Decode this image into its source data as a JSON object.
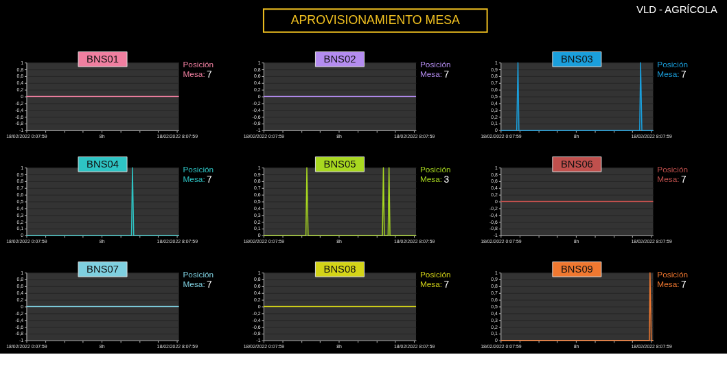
{
  "chart_data": [
    {
      "type": "other",
      "title": "APROVISIONAMIENTO MESA",
      "annotations": [
        "VLD - AGRÍCOLA"
      ]
    },
    {
      "type": "line",
      "title": "BNS01",
      "annotations": [
        "Posición Mesa:",
        "7"
      ],
      "grid": "y",
      "x": [
        "2022-02-18T00:07:59",
        "2022-02-18T08:14"
      ],
      "xlim": [
        "2022-02-18T00:07:59",
        "2022-02-18T08:14"
      ],
      "xticks": [
        {
          "value": "2022-02-18T00:07:59",
          "label": "18/02/2022 0:07:59"
        },
        {
          "value": "2022-02-18T01:07:59",
          "label": null
        },
        {
          "value": "2022-02-18T02:07:59",
          "label": null
        },
        {
          "value": "2022-02-18T03:07:59",
          "label": null
        },
        {
          "value": "2022-02-18T04:07:59",
          "label": "8h"
        },
        {
          "value": "2022-02-18T05:07:59",
          "label": null
        },
        {
          "value": "2022-02-18T06:07:59",
          "label": null
        },
        {
          "value": "2022-02-18T07:07:59",
          "label": null
        },
        {
          "value": "2022-02-18T08:07:59",
          "label": "18/02/2022 8:07:59"
        }
      ],
      "ylim": [
        -1,
        1
      ],
      "yticks": [
        -1,
        {
          "value": -0.8,
          "label": "-0,8"
        },
        {
          "value": -0.6,
          "label": "-0,6"
        },
        {
          "value": -0.4,
          "label": "-0,4"
        },
        {
          "value": -0.2,
          "label": "-0,2"
        },
        0,
        {
          "value": 0.2,
          "label": "0,2"
        },
        {
          "value": 0.4,
          "label": "0,4"
        },
        {
          "value": 0.6,
          "label": "0,6"
        },
        {
          "value": 0.8,
          "label": "0,8"
        },
        1
      ],
      "series": [
        {
          "color": "#f07fa0",
          "values": [
            0,
            0
          ]
        }
      ]
    },
    {
      "type": "line",
      "title": "BNS02",
      "annotations": [
        "Posición Mesa:",
        "7"
      ],
      "grid": "y",
      "x": [
        "2022-02-18T00:07:59",
        "2022-02-18T08:14"
      ],
      "xlim": [
        "2022-02-18T00:07:59",
        "2022-02-18T08:14"
      ],
      "xticks": [
        {
          "value": "2022-02-18T00:07:59",
          "label": "18/02/2022 0:07:59"
        },
        {
          "value": "2022-02-18T01:07:59",
          "label": null
        },
        {
          "value": "2022-02-18T02:07:59",
          "label": null
        },
        {
          "value": "2022-02-18T03:07:59",
          "label": null
        },
        {
          "value": "2022-02-18T04:07:59",
          "label": "8h"
        },
        {
          "value": "2022-02-18T05:07:59",
          "label": null
        },
        {
          "value": "2022-02-18T06:07:59",
          "label": null
        },
        {
          "value": "2022-02-18T07:07:59",
          "label": null
        },
        {
          "value": "2022-02-18T08:07:59",
          "label": "18/02/2022 8:07:59"
        }
      ],
      "ylim": [
        -1,
        1
      ],
      "yticks": [
        -1,
        {
          "value": -0.8,
          "label": "-0,8"
        },
        {
          "value": -0.6,
          "label": "-0,6"
        },
        {
          "value": -0.4,
          "label": "-0,4"
        },
        {
          "value": -0.2,
          "label": "-0,2"
        },
        0,
        {
          "value": 0.2,
          "label": "0,2"
        },
        {
          "value": 0.4,
          "label": "0,4"
        },
        {
          "value": 0.6,
          "label": "0,6"
        },
        {
          "value": 0.8,
          "label": "0,8"
        },
        1
      ],
      "series": [
        {
          "color": "#b48cf0",
          "values": [
            0,
            0
          ]
        }
      ]
    },
    {
      "type": "line",
      "title": "BNS03",
      "annotations": [
        "Posición Mesa:",
        "7"
      ],
      "grid": "y",
      "x": [
        "2022-02-18T00:07:59",
        "2022-02-18T00:59",
        "2022-02-18T01:03",
        "2022-02-18T01:06",
        "2022-02-18T07:31",
        "2022-02-18T07:34",
        "2022-02-18T07:38",
        "2022-02-18T08:14"
      ],
      "xlim": [
        "2022-02-18T00:07:59",
        "2022-02-18T08:14"
      ],
      "xticks": [
        {
          "value": "2022-02-18T00:07:59",
          "label": "18/02/2022 0:07:59"
        },
        {
          "value": "2022-02-18T01:07:59",
          "label": null
        },
        {
          "value": "2022-02-18T02:07:59",
          "label": null
        },
        {
          "value": "2022-02-18T03:07:59",
          "label": null
        },
        {
          "value": "2022-02-18T04:07:59",
          "label": "8h"
        },
        {
          "value": "2022-02-18T05:07:59",
          "label": null
        },
        {
          "value": "2022-02-18T06:07:59",
          "label": null
        },
        {
          "value": "2022-02-18T07:07:59",
          "label": null
        },
        {
          "value": "2022-02-18T08:07:59",
          "label": "18/02/2022 8:07:59"
        }
      ],
      "ylim": [
        0,
        1
      ],
      "yticks": [
        0,
        {
          "value": 0.1,
          "label": "0,1"
        },
        {
          "value": 0.2,
          "label": "0,2"
        },
        {
          "value": 0.3,
          "label": "0,3"
        },
        {
          "value": 0.4,
          "label": "0,4"
        },
        {
          "value": 0.5,
          "label": "0,5"
        },
        {
          "value": 0.6,
          "label": "0,6"
        },
        {
          "value": 0.7,
          "label": "0,7"
        },
        {
          "value": 0.8,
          "label": "0,8"
        },
        {
          "value": 0.9,
          "label": "0,9"
        },
        1
      ],
      "series": [
        {
          "color": "#1a9fdc",
          "values": [
            0,
            0,
            1,
            0,
            0,
            1,
            0,
            0
          ]
        }
      ]
    },
    {
      "type": "line",
      "title": "BNS04",
      "annotations": [
        "Posición Mesa:",
        "7"
      ],
      "grid": "y",
      "x": [
        "2022-02-18T00:07:59",
        "2022-02-18T05:43",
        "2022-02-18T05:46",
        "2022-02-18T05:50",
        "2022-02-18T08:14"
      ],
      "xlim": [
        "2022-02-18T00:07:59",
        "2022-02-18T08:14"
      ],
      "xticks": [
        {
          "value": "2022-02-18T00:07:59",
          "label": "18/02/2022 0:07:59"
        },
        {
          "value": "2022-02-18T01:07:59",
          "label": null
        },
        {
          "value": "2022-02-18T02:07:59",
          "label": null
        },
        {
          "value": "2022-02-18T03:07:59",
          "label": null
        },
        {
          "value": "2022-02-18T04:07:59",
          "label": "8h"
        },
        {
          "value": "2022-02-18T05:07:59",
          "label": null
        },
        {
          "value": "2022-02-18T06:07:59",
          "label": null
        },
        {
          "value": "2022-02-18T07:07:59",
          "label": null
        },
        {
          "value": "2022-02-18T08:07:59",
          "label": "18/02/2022 8:07:59"
        }
      ],
      "ylim": [
        0,
        1
      ],
      "yticks": [
        0,
        {
          "value": 0.1,
          "label": "0,1"
        },
        {
          "value": 0.2,
          "label": "0,2"
        },
        {
          "value": 0.3,
          "label": "0,3"
        },
        {
          "value": 0.4,
          "label": "0,4"
        },
        {
          "value": 0.5,
          "label": "0,5"
        },
        {
          "value": 0.6,
          "label": "0,6"
        },
        {
          "value": 0.7,
          "label": "0,7"
        },
        {
          "value": 0.8,
          "label": "0,8"
        },
        {
          "value": 0.9,
          "label": "0,9"
        },
        1
      ],
      "series": [
        {
          "color": "#2ec4c4",
          "values": [
            0,
            0,
            1,
            0,
            0
          ]
        }
      ]
    },
    {
      "type": "line",
      "title": "BNS05",
      "annotations": [
        "Posición Mesa:",
        "3"
      ],
      "grid": "y",
      "x": [
        "2022-02-18T00:07:59",
        "2022-02-18T02:23",
        "2022-02-18T02:26",
        "2022-02-18T02:30",
        "2022-02-18T06:27",
        "2022-02-18T06:30",
        "2022-02-18T06:33",
        "2022-02-18T06:45",
        "2022-02-18T06:48",
        "2022-02-18T06:51",
        "2022-02-18T08:14"
      ],
      "xlim": [
        "2022-02-18T00:07:59",
        "2022-02-18T08:14"
      ],
      "xticks": [
        {
          "value": "2022-02-18T00:07:59",
          "label": "18/02/2022 0:07:59"
        },
        {
          "value": "2022-02-18T01:07:59",
          "label": null
        },
        {
          "value": "2022-02-18T02:07:59",
          "label": null
        },
        {
          "value": "2022-02-18T03:07:59",
          "label": null
        },
        {
          "value": "2022-02-18T04:07:59",
          "label": "8h"
        },
        {
          "value": "2022-02-18T05:07:59",
          "label": null
        },
        {
          "value": "2022-02-18T06:07:59",
          "label": null
        },
        {
          "value": "2022-02-18T07:07:59",
          "label": null
        },
        {
          "value": "2022-02-18T08:07:59",
          "label": "18/02/2022 8:07:59"
        }
      ],
      "ylim": [
        0,
        1
      ],
      "yticks": [
        0,
        {
          "value": 0.1,
          "label": "0,1"
        },
        {
          "value": 0.2,
          "label": "0,2"
        },
        {
          "value": 0.3,
          "label": "0,3"
        },
        {
          "value": 0.4,
          "label": "0,4"
        },
        {
          "value": 0.5,
          "label": "0,5"
        },
        {
          "value": 0.6,
          "label": "0,6"
        },
        {
          "value": 0.7,
          "label": "0,7"
        },
        {
          "value": 0.8,
          "label": "0,8"
        },
        {
          "value": 0.9,
          "label": "0,9"
        },
        1
      ],
      "series": [
        {
          "color": "#a8d820",
          "values": [
            0,
            0,
            1,
            0,
            0,
            1,
            0,
            0,
            1,
            0,
            0
          ]
        }
      ]
    },
    {
      "type": "line",
      "title": "BNS06",
      "annotations": [
        "Posición Mesa:",
        "7"
      ],
      "grid": "y",
      "x": [
        "2022-02-18T00:07:59",
        "2022-02-18T08:14"
      ],
      "xlim": [
        "2022-02-18T00:07:59",
        "2022-02-18T08:14"
      ],
      "xticks": [
        {
          "value": "2022-02-18T00:07:59",
          "label": "18/02/2022 0:07:59"
        },
        {
          "value": "2022-02-18T01:07:59",
          "label": null
        },
        {
          "value": "2022-02-18T02:07:59",
          "label": null
        },
        {
          "value": "2022-02-18T03:07:59",
          "label": null
        },
        {
          "value": "2022-02-18T04:07:59",
          "label": "8h"
        },
        {
          "value": "2022-02-18T05:07:59",
          "label": null
        },
        {
          "value": "2022-02-18T06:07:59",
          "label": null
        },
        {
          "value": "2022-02-18T07:07:59",
          "label": null
        },
        {
          "value": "2022-02-18T08:07:59",
          "label": "18/02/2022 8:07:59"
        }
      ],
      "ylim": [
        -1,
        1
      ],
      "yticks": [
        -1,
        {
          "value": -0.8,
          "label": "-0,8"
        },
        {
          "value": -0.6,
          "label": "-0,6"
        },
        {
          "value": -0.4,
          "label": "-0,4"
        },
        {
          "value": -0.2,
          "label": "-0,2"
        },
        0,
        {
          "value": 0.2,
          "label": "0,2"
        },
        {
          "value": 0.4,
          "label": "0,4"
        },
        {
          "value": 0.6,
          "label": "0,6"
        },
        {
          "value": 0.8,
          "label": "0,8"
        },
        1
      ],
      "series": [
        {
          "color": "#c0504d",
          "values": [
            0,
            0
          ]
        }
      ]
    },
    {
      "type": "line",
      "title": "BNS07",
      "annotations": [
        "Posición Mesa:",
        "7"
      ],
      "grid": "y",
      "x": [
        "2022-02-18T00:07:59",
        "2022-02-18T08:14"
      ],
      "xlim": [
        "2022-02-18T00:07:59",
        "2022-02-18T08:14"
      ],
      "xticks": [
        {
          "value": "2022-02-18T00:07:59",
          "label": "18/02/2022 0:07:59"
        },
        {
          "value": "2022-02-18T01:07:59",
          "label": null
        },
        {
          "value": "2022-02-18T02:07:59",
          "label": null
        },
        {
          "value": "2022-02-18T03:07:59",
          "label": null
        },
        {
          "value": "2022-02-18T04:07:59",
          "label": "8h"
        },
        {
          "value": "2022-02-18T05:07:59",
          "label": null
        },
        {
          "value": "2022-02-18T06:07:59",
          "label": null
        },
        {
          "value": "2022-02-18T07:07:59",
          "label": null
        },
        {
          "value": "2022-02-18T08:07:59",
          "label": "18/02/2022 8:07:59"
        }
      ],
      "ylim": [
        -1,
        1
      ],
      "yticks": [
        -1,
        {
          "value": -0.8,
          "label": "-0,8"
        },
        {
          "value": -0.6,
          "label": "-0,6"
        },
        {
          "value": -0.4,
          "label": "-0,4"
        },
        {
          "value": -0.2,
          "label": "-0,2"
        },
        0,
        {
          "value": 0.2,
          "label": "0,2"
        },
        {
          "value": 0.4,
          "label": "0,4"
        },
        {
          "value": 0.6,
          "label": "0,6"
        },
        {
          "value": 0.8,
          "label": "0,8"
        },
        1
      ],
      "series": [
        {
          "color": "#7fd0e0",
          "values": [
            0,
            0
          ]
        }
      ]
    },
    {
      "type": "line",
      "title": "BNS08",
      "annotations": [
        "Posición Mesa:",
        "7"
      ],
      "grid": "y",
      "x": [
        "2022-02-18T00:07:59",
        "2022-02-18T08:14"
      ],
      "xlim": [
        "2022-02-18T00:07:59",
        "2022-02-18T08:14"
      ],
      "xticks": [
        {
          "value": "2022-02-18T00:07:59",
          "label": "18/02/2022 0:07:59"
        },
        {
          "value": "2022-02-18T01:07:59",
          "label": null
        },
        {
          "value": "2022-02-18T02:07:59",
          "label": null
        },
        {
          "value": "2022-02-18T03:07:59",
          "label": null
        },
        {
          "value": "2022-02-18T04:07:59",
          "label": "8h"
        },
        {
          "value": "2022-02-18T05:07:59",
          "label": null
        },
        {
          "value": "2022-02-18T06:07:59",
          "label": null
        },
        {
          "value": "2022-02-18T07:07:59",
          "label": null
        },
        {
          "value": "2022-02-18T08:07:59",
          "label": "18/02/2022 8:07:59"
        }
      ],
      "ylim": [
        -1,
        1
      ],
      "yticks": [
        -1,
        {
          "value": -0.8,
          "label": "-0,8"
        },
        {
          "value": -0.6,
          "label": "-0,6"
        },
        {
          "value": -0.4,
          "label": "-0,4"
        },
        {
          "value": -0.2,
          "label": "-0,2"
        },
        0,
        {
          "value": 0.2,
          "label": "0,2"
        },
        {
          "value": 0.4,
          "label": "0,4"
        },
        {
          "value": 0.6,
          "label": "0,6"
        },
        {
          "value": 0.8,
          "label": "0,8"
        },
        1
      ],
      "series": [
        {
          "color": "#d4d418",
          "values": [
            0,
            0
          ]
        }
      ]
    },
    {
      "type": "line",
      "title": "BNS09",
      "annotations": [
        "Posición Mesa:",
        "7"
      ],
      "grid": "y",
      "x": [
        "2022-02-18T00:07:59",
        "2022-02-18T08:02",
        "2022-02-18T08:04",
        "2022-02-18T08:08",
        "2022-02-18T08:14"
      ],
      "xlim": [
        "2022-02-18T00:07:59",
        "2022-02-18T08:14"
      ],
      "xticks": [
        {
          "value": "2022-02-18T00:07:59",
          "label": "18/02/2022 0:07:59"
        },
        {
          "value": "2022-02-18T01:07:59",
          "label": null
        },
        {
          "value": "2022-02-18T02:07:59",
          "label": null
        },
        {
          "value": "2022-02-18T03:07:59",
          "label": null
        },
        {
          "value": "2022-02-18T04:07:59",
          "label": "8h"
        },
        {
          "value": "2022-02-18T05:07:59",
          "label": null
        },
        {
          "value": "2022-02-18T06:07:59",
          "label": null
        },
        {
          "value": "2022-02-18T07:07:59",
          "label": null
        },
        {
          "value": "2022-02-18T08:07:59",
          "label": "18/02/2022 8:07:59"
        }
      ],
      "ylim": [
        0,
        1
      ],
      "yticks": [
        0,
        {
          "value": 0.1,
          "label": "0,1"
        },
        {
          "value": 0.2,
          "label": "0,2"
        },
        {
          "value": 0.3,
          "label": "0,3"
        },
        {
          "value": 0.4,
          "label": "0,4"
        },
        {
          "value": 0.5,
          "label": "0,5"
        },
        {
          "value": 0.6,
          "label": "0,6"
        },
        {
          "value": 0.7,
          "label": "0,7"
        },
        {
          "value": 0.8,
          "label": "0,8"
        },
        {
          "value": 0.9,
          "label": "0,9"
        },
        1
      ],
      "series": [
        {
          "color": "#f07830",
          "values": [
            0,
            0,
            1,
            0,
            0
          ]
        }
      ]
    }
  ]
}
